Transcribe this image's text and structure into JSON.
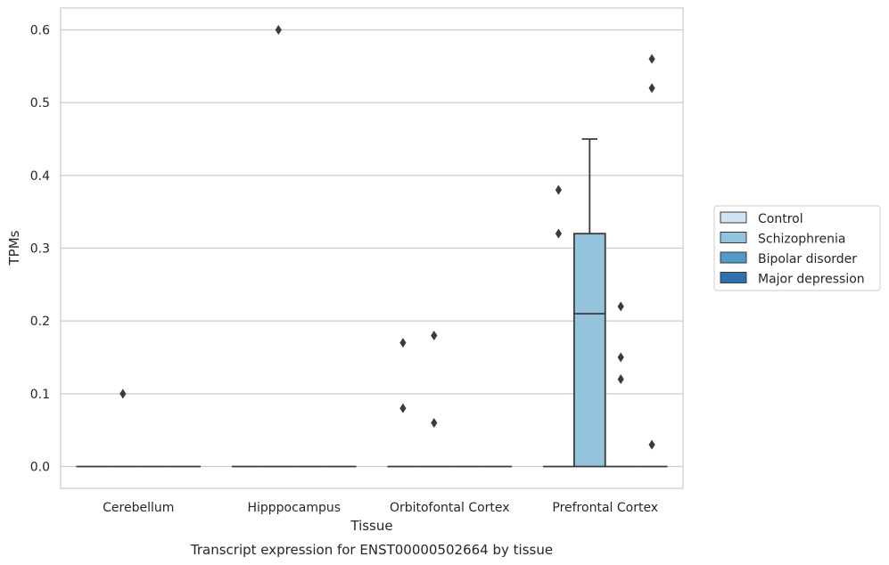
{
  "chart_data": {
    "type": "box",
    "caption": "Transcript expression for ENST00000502664 by tissue",
    "xlabel": "Tissue",
    "ylabel": "TPMs",
    "ylim": [
      -0.03,
      0.63
    ],
    "yticks": [
      0.0,
      0.1,
      0.2,
      0.3,
      0.4,
      0.5,
      0.6
    ],
    "ytick_labels": [
      "0.0",
      "0.1",
      "0.2",
      "0.3",
      "0.4",
      "0.5",
      "0.6"
    ],
    "grid": true,
    "legend_position": "right",
    "categories": [
      "Cerebellum",
      "Hipppocampus",
      "Orbitofontal Cortex",
      "Prefrontal Cortex"
    ],
    "series": [
      {
        "name": "Control",
        "color": "#d1e2f1"
      },
      {
        "name": "Schizophrenia",
        "color": "#94c3de"
      },
      {
        "name": "Bipolar disorder",
        "color": "#5599c8"
      },
      {
        "name": "Major depression",
        "color": "#2d70b0"
      }
    ],
    "boxes": [
      {
        "category": "Cerebellum",
        "series": "Control",
        "q1": 0.0,
        "median": 0.0,
        "q3": 0.0,
        "whisker_low": 0.0,
        "whisker_high": 0.0,
        "outliers": []
      },
      {
        "category": "Cerebellum",
        "series": "Schizophrenia",
        "q1": 0.0,
        "median": 0.0,
        "q3": 0.0,
        "whisker_low": 0.0,
        "whisker_high": 0.0,
        "outliers": [
          0.1
        ]
      },
      {
        "category": "Cerebellum",
        "series": "Bipolar disorder",
        "q1": 0.0,
        "median": 0.0,
        "q3": 0.0,
        "whisker_low": 0.0,
        "whisker_high": 0.0,
        "outliers": []
      },
      {
        "category": "Cerebellum",
        "series": "Major depression",
        "q1": 0.0,
        "median": 0.0,
        "q3": 0.0,
        "whisker_low": 0.0,
        "whisker_high": 0.0,
        "outliers": []
      },
      {
        "category": "Hipppocampus",
        "series": "Control",
        "q1": 0.0,
        "median": 0.0,
        "q3": 0.0,
        "whisker_low": 0.0,
        "whisker_high": 0.0,
        "outliers": []
      },
      {
        "category": "Hipppocampus",
        "series": "Schizophrenia",
        "q1": 0.0,
        "median": 0.0,
        "q3": 0.0,
        "whisker_low": 0.0,
        "whisker_high": 0.0,
        "outliers": [
          0.6
        ]
      },
      {
        "category": "Hipppocampus",
        "series": "Bipolar disorder",
        "q1": 0.0,
        "median": 0.0,
        "q3": 0.0,
        "whisker_low": 0.0,
        "whisker_high": 0.0,
        "outliers": []
      },
      {
        "category": "Hipppocampus",
        "series": "Major depression",
        "q1": 0.0,
        "median": 0.0,
        "q3": 0.0,
        "whisker_low": 0.0,
        "whisker_high": 0.0,
        "outliers": []
      },
      {
        "category": "Orbitofontal Cortex",
        "series": "Control",
        "q1": 0.0,
        "median": 0.0,
        "q3": 0.0,
        "whisker_low": 0.0,
        "whisker_high": 0.0,
        "outliers": [
          0.17,
          0.08
        ]
      },
      {
        "category": "Orbitofontal Cortex",
        "series": "Schizophrenia",
        "q1": 0.0,
        "median": 0.0,
        "q3": 0.0,
        "whisker_low": 0.0,
        "whisker_high": 0.0,
        "outliers": [
          0.18,
          0.06
        ]
      },
      {
        "category": "Orbitofontal Cortex",
        "series": "Bipolar disorder",
        "q1": 0.0,
        "median": 0.0,
        "q3": 0.0,
        "whisker_low": 0.0,
        "whisker_high": 0.0,
        "outliers": []
      },
      {
        "category": "Orbitofontal Cortex",
        "series": "Major depression",
        "q1": 0.0,
        "median": 0.0,
        "q3": 0.0,
        "whisker_low": 0.0,
        "whisker_high": 0.0,
        "outliers": []
      },
      {
        "category": "Prefrontal Cortex",
        "series": "Control",
        "q1": 0.0,
        "median": 0.0,
        "q3": 0.0,
        "whisker_low": 0.0,
        "whisker_high": 0.0,
        "outliers": [
          0.38,
          0.32
        ]
      },
      {
        "category": "Prefrontal Cortex",
        "series": "Schizophrenia",
        "q1": 0.0,
        "median": 0.21,
        "q3": 0.32,
        "whisker_low": 0.0,
        "whisker_high": 0.45,
        "outliers": []
      },
      {
        "category": "Prefrontal Cortex",
        "series": "Bipolar disorder",
        "q1": 0.0,
        "median": 0.0,
        "q3": 0.0,
        "whisker_low": 0.0,
        "whisker_high": 0.0,
        "outliers": [
          0.22,
          0.15,
          0.12
        ]
      },
      {
        "category": "Prefrontal Cortex",
        "series": "Major depression",
        "q1": 0.0,
        "median": 0.0,
        "q3": 0.0,
        "whisker_low": 0.0,
        "whisker_high": 0.0,
        "outliers": [
          0.56,
          0.52,
          0.03
        ]
      }
    ]
  }
}
